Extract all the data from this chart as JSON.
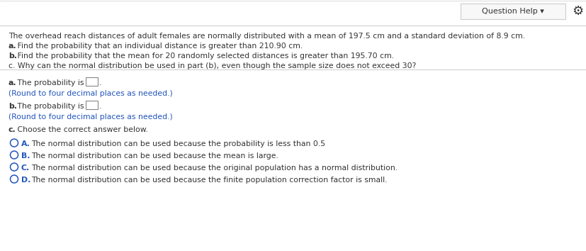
{
  "bg_color": "#ffffff",
  "content_bg": "#ffffff",
  "header_text": "Question Help ▾",
  "gear_symbol": "⚙",
  "main_text": "The overhead reach distances of adult females are normally distributed with a mean of 197.5 cm and a standard deviation of 8.9 cm.",
  "line_a_bold": "a.",
  "line_a_rest": " Find the probability that an individual distance is greater than 210.90 cm.",
  "line_b_bold": "b.",
  "line_b_rest": " Find the probability that the mean for 20 randomly selected distances is greater than 195.70 cm.",
  "line_c": "c. Why can the normal distribution be used in part (b), even though the sample size does not exceed 30?",
  "answer_a_bold": "a.",
  "answer_a_rest": " The probability is",
  "answer_a_sub": "(Round to four decimal places as needed.)",
  "answer_b_bold": "b.",
  "answer_b_rest": " The probability is",
  "answer_b_sub": "(Round to four decimal places as needed.)",
  "answer_c_bold": "c.",
  "answer_c_rest": " Choose the correct answer below.",
  "choice_A_letter": "A.",
  "choice_A_text": "  The normal distribution can be used because the probability is less than 0.5",
  "choice_B_letter": "B.",
  "choice_B_text": "  The normal distribution can be used because the mean is large.",
  "choice_C_letter": "C.",
  "choice_C_text": "  The normal distribution can be used because the original population has a normal distribution.",
  "choice_D_letter": "D.",
  "choice_D_text": "  The normal distribution can be used because the finite population correction factor is small.",
  "blue_text_color": "#2255bb",
  "dark_text_color": "#333333",
  "box_border_color": "#888888",
  "circle_color": "#2255bb",
  "header_box_color": "#f8f8f8",
  "separator_color": "#cccccc",
  "header_border_color": "#cccccc"
}
